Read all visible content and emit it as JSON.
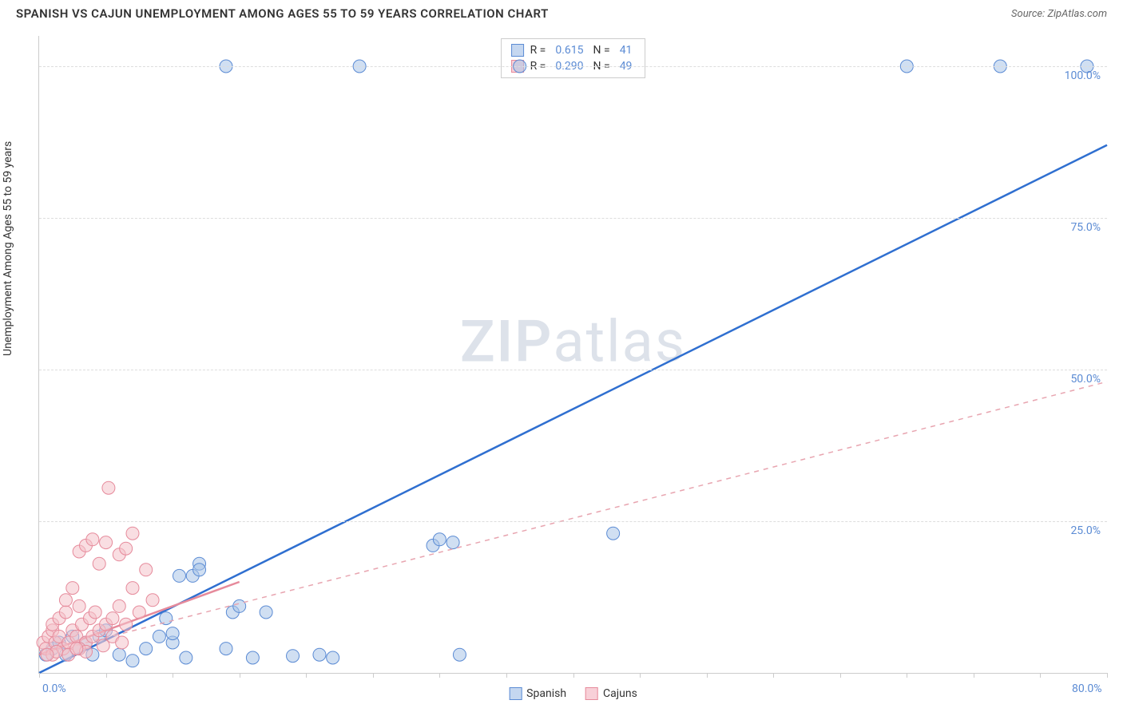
{
  "header": {
    "title": "SPANISH VS CAJUN UNEMPLOYMENT AMONG AGES 55 TO 59 YEARS CORRELATION CHART",
    "source_prefix": "Source: ",
    "source_name": "ZipAtlas.com"
  },
  "watermark": {
    "zip": "ZIP",
    "atlas": "atlas"
  },
  "chart": {
    "type": "scatter",
    "ylabel": "Unemployment Among Ages 55 to 59 years",
    "xlim": [
      0,
      80
    ],
    "ylim": [
      0,
      105
    ],
    "background_color": "#ffffff",
    "grid_color": "#dddddd",
    "axis_color": "#cccccc",
    "tick_label_color": "#5b8bd4",
    "tick_fontsize": 14,
    "label_fontsize": 14,
    "marker_radius": 8,
    "marker_opacity": 0.55,
    "yticks": [
      {
        "v": 25,
        "label": "25.0%"
      },
      {
        "v": 50,
        "label": "50.0%"
      },
      {
        "v": 75,
        "label": "75.0%"
      },
      {
        "v": 100,
        "label": "100.0%"
      }
    ],
    "xticks_minor": [
      0,
      5,
      10,
      15,
      20,
      25,
      30,
      35,
      40,
      45,
      50,
      55,
      60,
      65,
      70,
      75,
      80
    ],
    "xticks_labeled": [
      {
        "v": 0,
        "label": "0.0%"
      },
      {
        "v": 80,
        "label": "80.0%"
      }
    ],
    "series": [
      {
        "name": "Spanish",
        "color_fill": "#a9c4e8",
        "color_stroke": "#5b8bd4",
        "swatch_fill": "#c5d7f0",
        "swatch_stroke": "#5b8bd4",
        "r_value": "0.615",
        "n_value": "41",
        "trend": {
          "style": "solid",
          "stroke": "#2f6fd0",
          "width": 2.5,
          "x1": 0,
          "y1": 0,
          "x2": 80,
          "y2": 87
        },
        "points": [
          [
            0.5,
            3
          ],
          [
            1,
            4
          ],
          [
            1.5,
            5
          ],
          [
            2,
            3
          ],
          [
            2.5,
            6
          ],
          [
            3,
            4
          ],
          [
            3.5,
            5
          ],
          [
            4,
            3
          ],
          [
            4.5,
            6
          ],
          [
            6,
            3
          ],
          [
            7,
            2
          ],
          [
            8,
            4
          ],
          [
            9,
            6
          ],
          [
            9.5,
            9
          ],
          [
            10,
            5
          ],
          [
            10.5,
            16
          ],
          [
            11,
            2.5
          ],
          [
            11.5,
            16
          ],
          [
            12,
            18
          ],
          [
            14,
            4
          ],
          [
            14.5,
            10
          ],
          [
            15,
            11
          ],
          [
            16,
            2.5
          ],
          [
            17,
            10
          ],
          [
            19,
            2.8
          ],
          [
            21,
            3
          ],
          [
            22,
            2.5
          ],
          [
            29.5,
            21
          ],
          [
            30,
            22
          ],
          [
            31,
            21.5
          ],
          [
            31.5,
            3
          ],
          [
            36,
            100
          ],
          [
            43,
            23
          ],
          [
            65,
            100
          ],
          [
            72,
            100
          ],
          [
            78.5,
            100
          ],
          [
            24,
            100
          ],
          [
            14,
            100
          ],
          [
            10,
            6.5
          ],
          [
            5,
            7
          ],
          [
            12,
            17
          ]
        ]
      },
      {
        "name": "Cajuns",
        "color_fill": "#f4c2cb",
        "color_stroke": "#e68a9b",
        "swatch_fill": "#f8d0d8",
        "swatch_stroke": "#e68a9b",
        "r_value": "0.290",
        "n_value": "49",
        "trend": {
          "style": "dashed",
          "stroke": "#e8a5b0",
          "width": 1.5,
          "x1": 0,
          "y1": 3,
          "x2": 80,
          "y2": 48
        },
        "trend_short": {
          "style": "solid",
          "stroke": "#e68a9b",
          "width": 2.5,
          "x1": 0,
          "y1": 3,
          "x2": 15,
          "y2": 15
        },
        "points": [
          [
            0.3,
            5
          ],
          [
            0.5,
            4
          ],
          [
            0.7,
            6
          ],
          [
            1,
            7
          ],
          [
            1,
            8
          ],
          [
            1.2,
            5
          ],
          [
            1.5,
            6
          ],
          [
            1.5,
            9
          ],
          [
            1.8,
            4
          ],
          [
            2,
            10
          ],
          [
            2,
            12
          ],
          [
            2.2,
            5
          ],
          [
            2.5,
            14
          ],
          [
            2.5,
            7
          ],
          [
            2.8,
            6
          ],
          [
            3,
            11
          ],
          [
            3,
            20
          ],
          [
            3.2,
            8
          ],
          [
            3.5,
            5
          ],
          [
            3.5,
            21
          ],
          [
            3.8,
            9
          ],
          [
            4,
            6
          ],
          [
            4,
            22
          ],
          [
            4.2,
            10
          ],
          [
            4.5,
            7
          ],
          [
            4.5,
            18
          ],
          [
            5,
            21.5
          ],
          [
            5,
            8
          ],
          [
            5.2,
            30.5
          ],
          [
            5.5,
            9
          ],
          [
            6,
            11
          ],
          [
            6,
            19.5
          ],
          [
            6.5,
            20.5
          ],
          [
            6.5,
            8
          ],
          [
            7,
            14
          ],
          [
            7,
            23
          ],
          [
            7.5,
            10
          ],
          [
            8,
            17
          ],
          [
            8.5,
            12
          ],
          [
            1,
            3
          ],
          [
            1.3,
            3.5
          ],
          [
            0.6,
            3
          ],
          [
            2.2,
            3
          ],
          [
            3,
            4
          ],
          [
            4.8,
            4.5
          ],
          [
            3.5,
            3.5
          ],
          [
            2.8,
            4
          ],
          [
            5.5,
            6
          ],
          [
            6.2,
            5
          ]
        ]
      }
    ],
    "stat_legend": {
      "r_label": "R =",
      "n_label": "N ="
    },
    "series_legend": {
      "items": [
        {
          "label": "Spanish"
        },
        {
          "label": "Cajuns"
        }
      ]
    }
  }
}
